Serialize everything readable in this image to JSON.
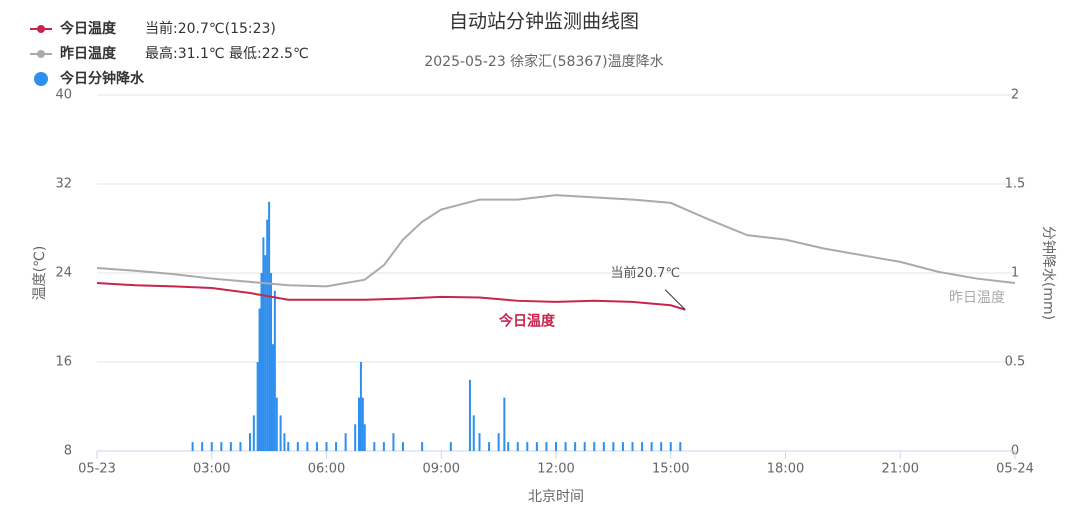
{
  "chart_data": {
    "type": "line-bar",
    "title": "自动站分钟监测曲线图",
    "subtitle": "2025-05-23 徐家汇(58367)温度降水",
    "xlabel": "北京时间",
    "ylabel": "温度(℃)",
    "y2label": "分钟降水(mm)",
    "xlim": [
      0,
      24
    ],
    "xticks": [
      {
        "value": 0,
        "label": "05-23"
      },
      {
        "value": 3,
        "label": "03:00"
      },
      {
        "value": 6,
        "label": "06:00"
      },
      {
        "value": 9,
        "label": "09:00"
      },
      {
        "value": 12,
        "label": "12:00"
      },
      {
        "value": 15,
        "label": "15:00"
      },
      {
        "value": 18,
        "label": "18:00"
      },
      {
        "value": 21,
        "label": "21:00"
      },
      {
        "value": 24,
        "label": "05-24"
      }
    ],
    "ylim": [
      8,
      40
    ],
    "yticks": [
      8,
      16,
      24,
      32,
      40
    ],
    "y2lim": [
      0,
      2
    ],
    "y2ticks": [
      0,
      0.5,
      1,
      1.5,
      2
    ],
    "grid": true,
    "annotation": "当前20.7℃",
    "series": [
      {
        "name": "今日温度",
        "note": "当前:20.7℃(15:23)",
        "line_label": "今日温度",
        "color": "#c7254e",
        "kind": "line",
        "x": [
          0,
          1,
          2,
          3,
          4,
          5,
          6,
          7,
          8,
          9,
          10,
          11,
          12,
          13,
          14,
          15,
          15.38
        ],
        "values": [
          23.1,
          22.9,
          22.8,
          22.65,
          22.2,
          21.6,
          21.6,
          21.6,
          21.7,
          21.85,
          21.8,
          21.5,
          21.4,
          21.5,
          21.4,
          21.1,
          20.7
        ]
      },
      {
        "name": "昨日温度",
        "note": "最高:31.1℃ 最低:22.5℃",
        "line_label": "昨日温度",
        "color": "#aaaaaa",
        "kind": "line",
        "x": [
          0,
          1,
          2,
          3,
          4,
          5,
          6,
          7,
          7.5,
          8,
          8.5,
          9,
          10,
          11,
          12,
          13,
          14,
          15,
          16,
          17,
          18,
          19,
          20,
          21,
          22,
          23,
          24
        ],
        "values": [
          24.45,
          24.2,
          23.9,
          23.5,
          23.2,
          22.9,
          22.8,
          23.4,
          24.7,
          27.0,
          28.6,
          29.7,
          30.6,
          30.6,
          31.0,
          30.8,
          30.6,
          30.3,
          28.8,
          27.4,
          27.0,
          26.2,
          25.6,
          25.0,
          24.1,
          23.5,
          23.1
        ]
      },
      {
        "name": "今日分钟降水",
        "color": "#2e8fee",
        "kind": "bar",
        "axis": "y2",
        "x": [
          2.5,
          2.75,
          3.0,
          3.25,
          3.5,
          3.75,
          4.0,
          4.1,
          4.2,
          4.25,
          4.3,
          4.35,
          4.4,
          4.45,
          4.5,
          4.55,
          4.6,
          4.65,
          4.7,
          4.8,
          4.9,
          5.0,
          5.25,
          5.5,
          5.75,
          6.0,
          6.25,
          6.5,
          6.75,
          6.85,
          6.9,
          6.95,
          7.0,
          7.25,
          7.5,
          7.75,
          8.0,
          8.5,
          9.25,
          9.75,
          9.85,
          10.0,
          10.25,
          10.5,
          10.65,
          10.75,
          11.0,
          11.25,
          11.5,
          11.75,
          12.0,
          12.25,
          12.5,
          12.75,
          13.0,
          13.25,
          13.5,
          13.75,
          14.0,
          14.25,
          14.5,
          14.75,
          15.0,
          15.25
        ],
        "values": [
          0.05,
          0.05,
          0.05,
          0.05,
          0.05,
          0.05,
          0.1,
          0.2,
          0.5,
          0.8,
          1.0,
          1.2,
          1.1,
          1.3,
          1.4,
          1.0,
          0.6,
          0.9,
          0.3,
          0.2,
          0.1,
          0.05,
          0.05,
          0.05,
          0.05,
          0.05,
          0.05,
          0.1,
          0.15,
          0.3,
          0.5,
          0.3,
          0.15,
          0.05,
          0.05,
          0.1,
          0.05,
          0.05,
          0.05,
          0.4,
          0.2,
          0.1,
          0.05,
          0.1,
          0.3,
          0.05,
          0.05,
          0.05,
          0.05,
          0.05,
          0.05,
          0.05,
          0.05,
          0.05,
          0.05,
          0.05,
          0.05,
          0.05,
          0.05,
          0.05,
          0.05,
          0.05,
          0.05,
          0.05
        ]
      }
    ]
  }
}
